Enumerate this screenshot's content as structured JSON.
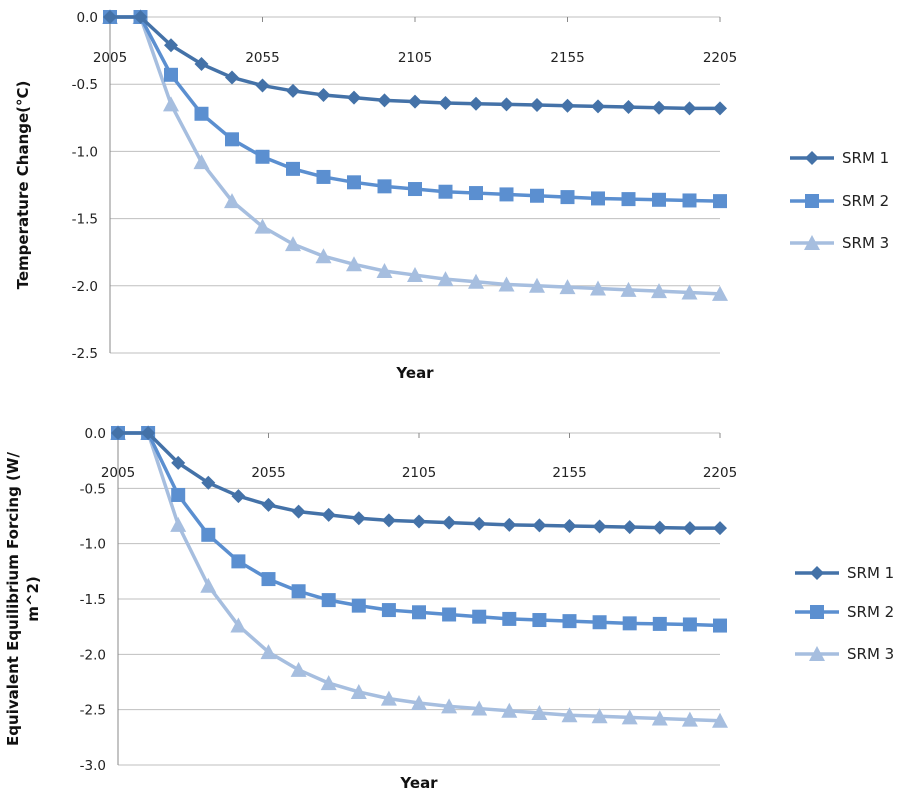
{
  "colors": {
    "SRM 1": "#4472a8",
    "SRM 2": "#5b8fd0",
    "SRM 3": "#a6bedf",
    "grid": "#bfbfbf",
    "axis": "#888888"
  },
  "chart_data": [
    {
      "type": "line",
      "xlabel": "Year",
      "ylabel": "Temperature Change(°C)",
      "x_ticks": [
        "2005",
        "2055",
        "2105",
        "2155",
        "2205"
      ],
      "y_ticks": [
        "0.0",
        "-0.5",
        "-1.0",
        "-1.5",
        "-2.0",
        "-2.5"
      ],
      "xlim": [
        2005,
        2205
      ],
      "ylim": [
        -2.5,
        0
      ],
      "x_axis_position": "top",
      "grid": "horizontal",
      "legend_position": "right",
      "x": [
        2005,
        2015,
        2025,
        2035,
        2045,
        2055,
        2065,
        2075,
        2085,
        2095,
        2105,
        2115,
        2125,
        2135,
        2145,
        2155,
        2165,
        2175,
        2185,
        2195,
        2205
      ],
      "series": [
        {
          "name": "SRM 1",
          "marker": "diamond",
          "values": [
            0,
            0,
            -0.21,
            -0.35,
            -0.45,
            -0.51,
            -0.55,
            -0.58,
            -0.6,
            -0.62,
            -0.63,
            -0.64,
            -0.645,
            -0.65,
            -0.655,
            -0.66,
            -0.665,
            -0.67,
            -0.675,
            -0.68,
            -0.68
          ]
        },
        {
          "name": "SRM 2",
          "marker": "square",
          "values": [
            0,
            0,
            -0.43,
            -0.72,
            -0.91,
            -1.04,
            -1.13,
            -1.19,
            -1.23,
            -1.26,
            -1.28,
            -1.3,
            -1.31,
            -1.32,
            -1.33,
            -1.34,
            -1.35,
            -1.355,
            -1.36,
            -1.365,
            -1.37
          ]
        },
        {
          "name": "SRM 3",
          "marker": "triangle",
          "values": [
            0,
            0,
            -0.65,
            -1.08,
            -1.37,
            -1.56,
            -1.69,
            -1.78,
            -1.84,
            -1.89,
            -1.92,
            -1.95,
            -1.97,
            -1.99,
            -2.0,
            -2.01,
            -2.02,
            -2.03,
            -2.04,
            -2.05,
            -2.06
          ]
        }
      ]
    },
    {
      "type": "line",
      "xlabel": "Year",
      "ylabel": "Equivalent Equilibrium Forcing (W/ m^2)",
      "ylabel_lines": [
        "Equivalent Equilibrium Forcing (W/",
        "m^2)"
      ],
      "x_ticks": [
        "2005",
        "2055",
        "2105",
        "2155",
        "2205"
      ],
      "y_ticks": [
        "0.0",
        "-0.5",
        "-1.0",
        "-1.5",
        "-2.0",
        "-2.5",
        "-3.0"
      ],
      "xlim": [
        2005,
        2205
      ],
      "ylim": [
        -3.0,
        0
      ],
      "x_axis_position": "top",
      "grid": "horizontal",
      "legend_position": "right",
      "x": [
        2005,
        2015,
        2025,
        2035,
        2045,
        2055,
        2065,
        2075,
        2085,
        2095,
        2105,
        2115,
        2125,
        2135,
        2145,
        2155,
        2165,
        2175,
        2185,
        2195,
        2205
      ],
      "series": [
        {
          "name": "SRM 1",
          "marker": "diamond",
          "values": [
            0,
            0,
            -0.27,
            -0.45,
            -0.57,
            -0.65,
            -0.71,
            -0.74,
            -0.77,
            -0.79,
            -0.8,
            -0.81,
            -0.82,
            -0.83,
            -0.835,
            -0.84,
            -0.845,
            -0.85,
            -0.855,
            -0.86,
            -0.86
          ]
        },
        {
          "name": "SRM 2",
          "marker": "square",
          "values": [
            0,
            0,
            -0.56,
            -0.92,
            -1.16,
            -1.32,
            -1.43,
            -1.51,
            -1.56,
            -1.6,
            -1.62,
            -1.64,
            -1.66,
            -1.68,
            -1.69,
            -1.7,
            -1.71,
            -1.72,
            -1.725,
            -1.73,
            -1.74
          ]
        },
        {
          "name": "SRM 3",
          "marker": "triangle",
          "values": [
            0,
            0,
            -0.83,
            -1.38,
            -1.74,
            -1.98,
            -2.14,
            -2.26,
            -2.34,
            -2.4,
            -2.44,
            -2.47,
            -2.49,
            -2.51,
            -2.53,
            -2.55,
            -2.56,
            -2.57,
            -2.58,
            -2.59,
            -2.6
          ]
        }
      ]
    }
  ]
}
